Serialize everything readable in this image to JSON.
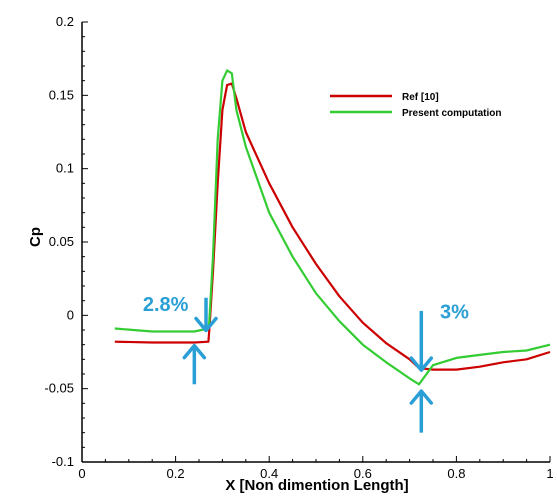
{
  "chart_data": {
    "type": "line",
    "title": "",
    "xlabel": "X [Non dimention Length]",
    "ylabel": "Cp",
    "xlim": [
      0,
      1
    ],
    "ylim": [
      -0.1,
      0.2
    ],
    "x_ticks": [
      {
        "value": 0,
        "label": "0"
      },
      {
        "value": 0.2,
        "label": "0.2"
      },
      {
        "value": 0.4,
        "label": "0.4"
      },
      {
        "value": 0.6,
        "label": "0.6"
      },
      {
        "value": 0.8,
        "label": "0.8"
      },
      {
        "value": 1,
        "label": "1"
      }
    ],
    "y_ticks": [
      {
        "value": -0.1,
        "label": "-0.1"
      },
      {
        "value": -0.05,
        "label": "-0.05"
      },
      {
        "value": 0,
        "label": "0"
      },
      {
        "value": 0.05,
        "label": "0.05"
      },
      {
        "value": 0.1,
        "label": "0.1"
      },
      {
        "value": 0.15,
        "label": "0.15"
      },
      {
        "value": 0.2,
        "label": "0.2"
      }
    ],
    "grid": false,
    "legend_position": "top-right",
    "series": [
      {
        "name": "Ref [10]",
        "color": "#cc0000",
        "x": [
          0.07,
          0.15,
          0.2,
          0.24,
          0.27,
          0.272,
          0.28,
          0.29,
          0.3,
          0.31,
          0.32,
          0.33,
          0.35,
          0.4,
          0.45,
          0.5,
          0.55,
          0.6,
          0.65,
          0.7,
          0.72,
          0.75,
          0.8,
          0.85,
          0.9,
          0.95,
          1.0
        ],
        "y": [
          -0.018,
          -0.0185,
          -0.0185,
          -0.0185,
          -0.018,
          -0.01,
          0.03,
          0.09,
          0.14,
          0.157,
          0.158,
          0.148,
          0.125,
          0.09,
          0.06,
          0.035,
          0.013,
          -0.005,
          -0.019,
          -0.03,
          -0.036,
          -0.037,
          -0.037,
          -0.035,
          -0.032,
          -0.03,
          -0.025
        ]
      },
      {
        "name": "Present computation",
        "color": "#33cc33",
        "x": [
          0.07,
          0.15,
          0.2,
          0.24,
          0.27,
          0.272,
          0.28,
          0.29,
          0.3,
          0.31,
          0.32,
          0.33,
          0.35,
          0.4,
          0.45,
          0.5,
          0.55,
          0.6,
          0.65,
          0.7,
          0.72,
          0.75,
          0.8,
          0.85,
          0.9,
          0.95,
          1.0
        ],
        "y": [
          -0.009,
          -0.011,
          -0.011,
          -0.011,
          -0.009,
          -0.004,
          0.04,
          0.12,
          0.16,
          0.167,
          0.165,
          0.14,
          0.115,
          0.07,
          0.04,
          0.015,
          -0.004,
          -0.02,
          -0.032,
          -0.043,
          -0.047,
          -0.034,
          -0.029,
          -0.027,
          -0.025,
          -0.024,
          -0.02
        ]
      }
    ],
    "annotations": [
      {
        "text": "2.8%",
        "x": 0.13,
        "y": 0.003,
        "color": "#2a9fd6"
      },
      {
        "text": "3%",
        "x": 0.765,
        "y": -0.002,
        "color": "#2a9fd6"
      }
    ],
    "arrows": [
      {
        "direction": "down",
        "x": 0.265,
        "y_from": 0.012,
        "y_to": -0.009
      },
      {
        "direction": "up",
        "x": 0.24,
        "y_from": -0.047,
        "y_to": -0.022
      },
      {
        "direction": "down",
        "x": 0.725,
        "y_from": 0.003,
        "y_to": -0.036
      },
      {
        "direction": "up",
        "x": 0.725,
        "y_from": -0.08,
        "y_to": -0.053
      }
    ]
  }
}
